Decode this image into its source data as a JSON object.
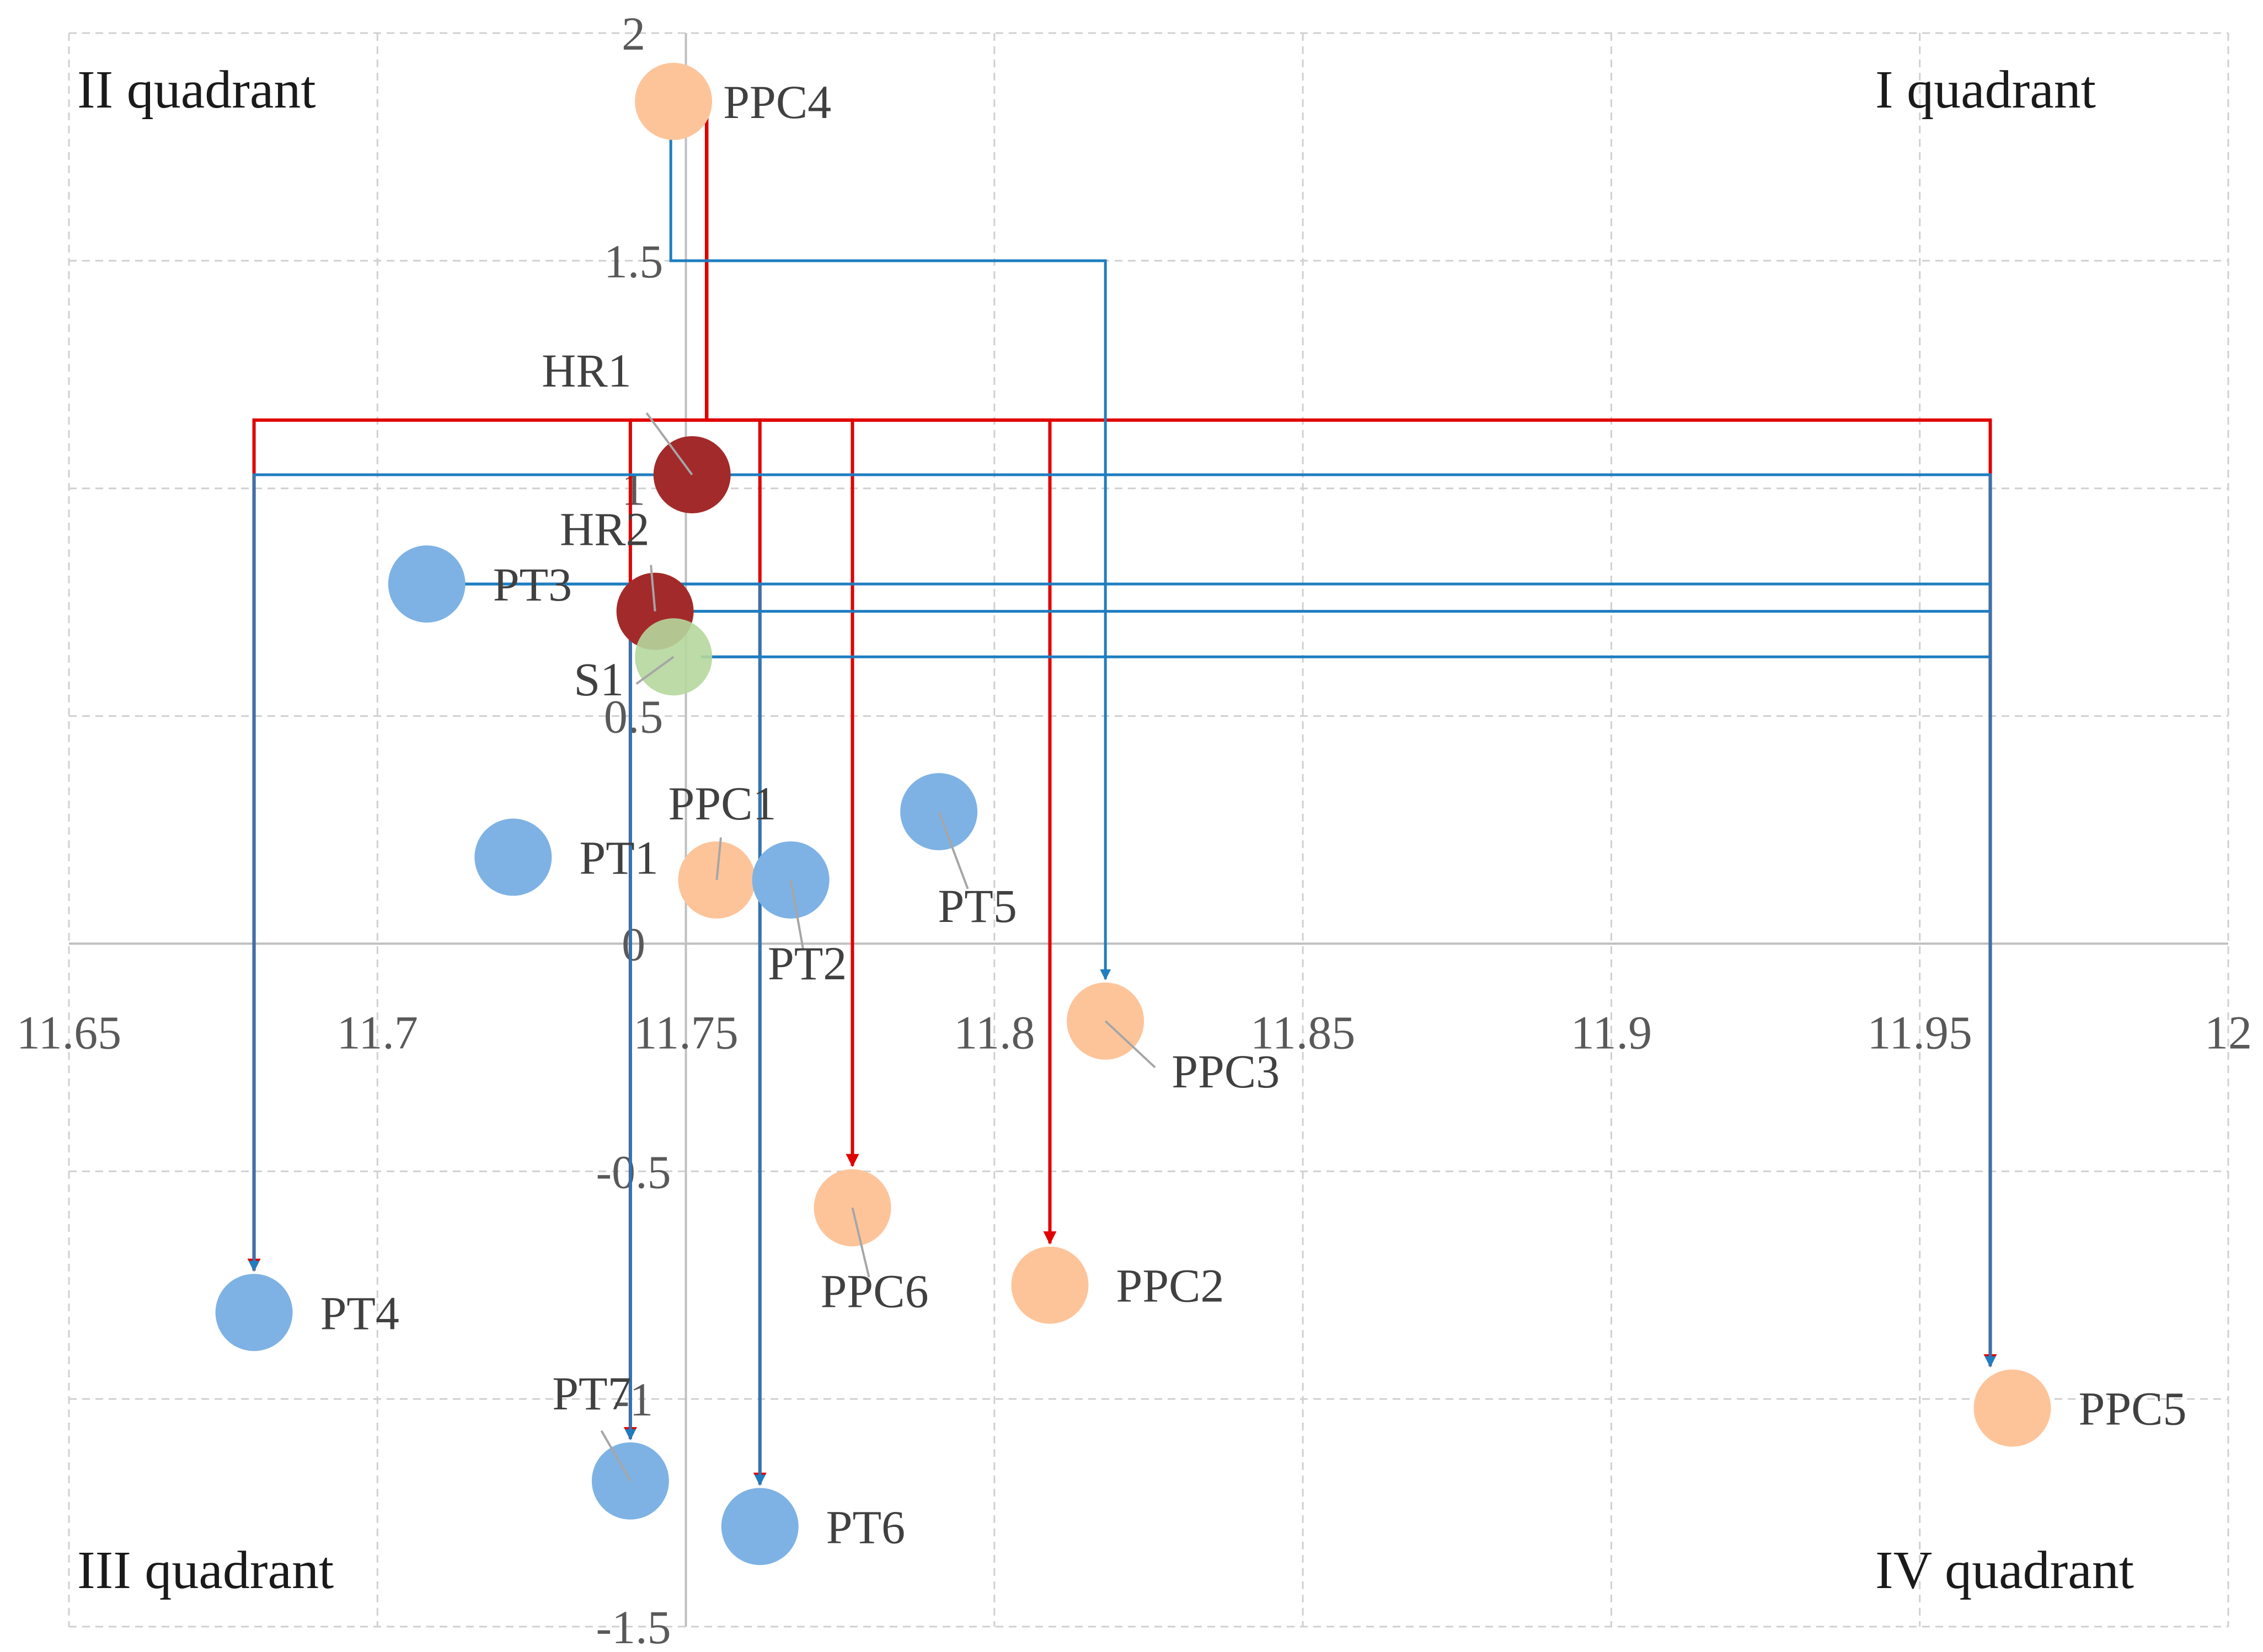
{
  "chart_data": {
    "type": "scatter",
    "title": "",
    "xlabel": "",
    "ylabel": "",
    "xlim": [
      11.65,
      12
    ],
    "ylim": [
      -1.5,
      2
    ],
    "x_ticks": [
      "11.65",
      "11.7",
      "11.75",
      "11.8",
      "11.85",
      "11.9",
      "11.95",
      "12"
    ],
    "y_ticks": [
      "2",
      "1.5",
      "1",
      "0.5",
      "0",
      "-0.5",
      "-1",
      "-1.5"
    ],
    "grid": true,
    "quadrants": {
      "I": "I quadrant",
      "II": "II quadrant",
      "III": "III quadrant",
      "IV": "IV quadrant"
    },
    "colors": {
      "PT": "#7eb2e4",
      "PPC": "#fdc49a",
      "HR": "#a32a2a",
      "S": "#b5d79c",
      "arrow_red": "#e00000",
      "arrow_blue": "#1f7dc0",
      "grid": "#d0d0d0",
      "axis": "#bfbfbf",
      "leader": "#a6a6a6"
    },
    "points": [
      {
        "name": "PPC4",
        "x": 11.748,
        "y": 1.85,
        "group": "PPC"
      },
      {
        "name": "HR1",
        "x": 11.751,
        "y": 1.03,
        "group": "HR"
      },
      {
        "name": "HR2",
        "x": 11.745,
        "y": 0.73,
        "group": "HR"
      },
      {
        "name": "S1",
        "x": 11.748,
        "y": 0.63,
        "group": "S"
      },
      {
        "name": "PT3",
        "x": 11.708,
        "y": 0.79,
        "group": "PT"
      },
      {
        "name": "PT1",
        "x": 11.722,
        "y": 0.19,
        "group": "PT"
      },
      {
        "name": "PPC1",
        "x": 11.755,
        "y": 0.14,
        "group": "PPC"
      },
      {
        "name": "PT2",
        "x": 11.767,
        "y": 0.14,
        "group": "PT"
      },
      {
        "name": "PT5",
        "x": 11.791,
        "y": 0.29,
        "group": "PT"
      },
      {
        "name": "PPC3",
        "x": 11.818,
        "y": -0.17,
        "group": "PPC"
      },
      {
        "name": "PPC6",
        "x": 11.777,
        "y": -0.58,
        "group": "PPC"
      },
      {
        "name": "PPC2",
        "x": 11.809,
        "y": -0.75,
        "group": "PPC"
      },
      {
        "name": "PT4",
        "x": 11.68,
        "y": -0.81,
        "group": "PT"
      },
      {
        "name": "PPC5",
        "x": 11.965,
        "y": -1.02,
        "group": "PPC"
      },
      {
        "name": "PT7",
        "x": 11.741,
        "y": -1.18,
        "group": "PT"
      },
      {
        "name": "PT6",
        "x": 11.762,
        "y": -1.28,
        "group": "PT"
      }
    ],
    "links": [
      {
        "from": "PPC4",
        "to": "PT4",
        "color": "red"
      },
      {
        "from": "PPC4",
        "to": "PPC6",
        "color": "red"
      },
      {
        "from": "PPC4",
        "to": "PPC2",
        "color": "red"
      },
      {
        "from": "PPC4",
        "to": "PPC5",
        "color": "red"
      },
      {
        "from": "PPC4",
        "to": "PT6",
        "color": "red"
      },
      {
        "from": "PPC4",
        "to": "PT7",
        "color": "red"
      },
      {
        "from": "PPC4",
        "to": "PPC3",
        "color": "blue"
      },
      {
        "from": "HR1",
        "to": "PT4",
        "color": "blue"
      },
      {
        "from": "HR1",
        "to": "PPC5",
        "color": "blue"
      },
      {
        "from": "HR2",
        "to": "PPC5",
        "color": "blue"
      },
      {
        "from": "HR2",
        "to": "PT7",
        "color": "blue"
      },
      {
        "from": "HR2",
        "to": "PT6",
        "color": "blue"
      },
      {
        "from": "S1",
        "to": "PPC5",
        "color": "blue"
      },
      {
        "from": "S1",
        "to": "PT6",
        "color": "blue"
      },
      {
        "from": "PT3",
        "to": "PT7",
        "color": "blue"
      },
      {
        "from": "PT3",
        "to": "PT6",
        "color": "blue"
      },
      {
        "from": "PT3",
        "to": "PPC5",
        "color": "blue"
      }
    ]
  }
}
